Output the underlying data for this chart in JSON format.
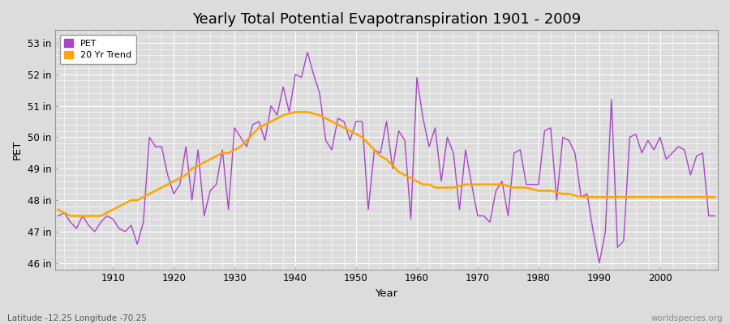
{
  "title": "Yearly Total Potential Evapotranspiration 1901 - 2009",
  "xlabel": "Year",
  "ylabel": "PET",
  "subtitle_left": "Latitude -12.25 Longitude -70.25",
  "subtitle_right": "worldspecies.org",
  "pet_color": "#AA44CC",
  "trend_color": "#FFA500",
  "bg_color": "#DCDCDC",
  "plot_bg_color": "#DCDCDC",
  "fig_bg_color": "#DCDCDC",
  "ylim": [
    45.8,
    53.4
  ],
  "xlim": [
    1900.5,
    2009.5
  ],
  "yticks": [
    46,
    47,
    48,
    49,
    50,
    51,
    52,
    53
  ],
  "ytick_labels": [
    "46 in",
    "47 in",
    "48 in",
    "49 in",
    "50 in",
    "51 in",
    "52 in",
    "53 in"
  ],
  "years": [
    1901,
    1902,
    1903,
    1904,
    1905,
    1906,
    1907,
    1908,
    1909,
    1910,
    1911,
    1912,
    1913,
    1914,
    1915,
    1916,
    1917,
    1918,
    1919,
    1920,
    1921,
    1922,
    1923,
    1924,
    1925,
    1926,
    1927,
    1928,
    1929,
    1930,
    1931,
    1932,
    1933,
    1934,
    1935,
    1936,
    1937,
    1938,
    1939,
    1940,
    1941,
    1942,
    1943,
    1944,
    1945,
    1946,
    1947,
    1948,
    1949,
    1950,
    1951,
    1952,
    1953,
    1954,
    1955,
    1956,
    1957,
    1958,
    1959,
    1960,
    1961,
    1962,
    1963,
    1964,
    1965,
    1966,
    1967,
    1968,
    1969,
    1970,
    1971,
    1972,
    1973,
    1974,
    1975,
    1976,
    1977,
    1978,
    1979,
    1980,
    1981,
    1982,
    1983,
    1984,
    1985,
    1986,
    1987,
    1988,
    1989,
    1990,
    1991,
    1992,
    1993,
    1994,
    1995,
    1996,
    1997,
    1998,
    1999,
    2000,
    2001,
    2002,
    2003,
    2004,
    2005,
    2006,
    2007,
    2008,
    2009
  ],
  "pet_values": [
    47.5,
    47.6,
    47.3,
    47.1,
    47.5,
    47.2,
    47.0,
    47.3,
    47.5,
    47.4,
    47.1,
    47.0,
    47.2,
    46.6,
    47.3,
    50.0,
    49.7,
    49.7,
    48.8,
    48.2,
    48.5,
    49.7,
    48.0,
    49.6,
    47.5,
    48.3,
    48.5,
    49.6,
    47.7,
    50.3,
    50.0,
    49.7,
    50.4,
    50.5,
    49.9,
    51.0,
    50.7,
    51.6,
    50.8,
    52.0,
    51.9,
    52.7,
    52.0,
    51.4,
    49.9,
    49.6,
    50.6,
    50.5,
    49.9,
    50.5,
    50.5,
    47.7,
    49.6,
    49.5,
    50.5,
    49.0,
    50.2,
    49.9,
    47.4,
    51.9,
    50.6,
    49.7,
    50.3,
    48.6,
    50.0,
    49.5,
    47.7,
    49.6,
    48.5,
    47.5,
    47.5,
    47.3,
    48.3,
    48.6,
    47.5,
    49.5,
    49.6,
    48.5,
    48.5,
    48.5,
    50.2,
    50.3,
    48.0,
    50.0,
    49.9,
    49.5,
    48.1,
    48.2,
    47.0,
    46.0,
    47.0,
    51.2,
    46.5,
    46.7,
    50.0,
    50.1,
    49.5,
    49.9,
    49.6,
    50.0,
    49.3,
    49.5,
    49.7,
    49.6,
    48.8,
    49.4,
    49.5,
    47.5,
    47.5
  ],
  "trend_values": [
    47.7,
    47.6,
    47.5,
    47.5,
    47.5,
    47.5,
    47.5,
    47.5,
    47.6,
    47.7,
    47.8,
    47.9,
    48.0,
    48.0,
    48.1,
    48.2,
    48.3,
    48.4,
    48.5,
    48.6,
    48.7,
    48.8,
    49.0,
    49.1,
    49.2,
    49.3,
    49.4,
    49.5,
    49.5,
    49.6,
    49.7,
    49.9,
    50.1,
    50.3,
    50.4,
    50.5,
    50.6,
    50.7,
    50.75,
    50.8,
    50.8,
    50.8,
    50.75,
    50.7,
    50.6,
    50.5,
    50.4,
    50.3,
    50.2,
    50.1,
    50.0,
    49.8,
    49.6,
    49.4,
    49.3,
    49.1,
    48.9,
    48.8,
    48.7,
    48.6,
    48.5,
    48.5,
    48.4,
    48.4,
    48.4,
    48.4,
    48.45,
    48.5,
    48.5,
    48.5,
    48.5,
    48.5,
    48.5,
    48.5,
    48.45,
    48.4,
    48.4,
    48.4,
    48.35,
    48.3,
    48.3,
    48.3,
    48.25,
    48.2,
    48.2,
    48.15,
    48.1,
    48.1,
    48.1,
    48.1,
    48.1,
    48.1,
    48.1,
    48.1,
    48.1,
    48.1,
    48.1,
    48.1,
    48.1,
    48.1,
    48.1,
    48.1,
    48.1,
    48.1,
    48.1,
    48.1,
    48.1,
    48.1,
    48.1
  ],
  "xticks": [
    1910,
    1920,
    1930,
    1940,
    1950,
    1960,
    1970,
    1980,
    1990,
    2000
  ],
  "legend_pet": "PET",
  "legend_trend": "20 Yr Trend",
  "title_fontsize": 13,
  "tick_fontsize": 8.5,
  "label_fontsize": 9.5
}
